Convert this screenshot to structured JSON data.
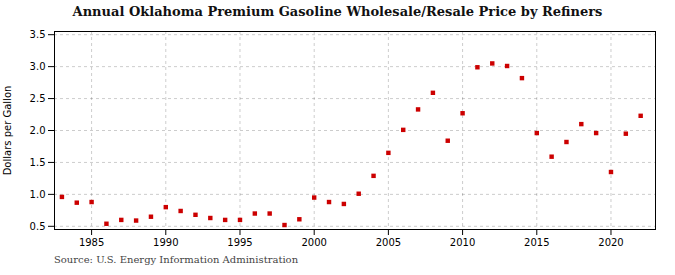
{
  "chart_data": {
    "type": "scatter",
    "title": "Annual Oklahoma Premium Gasoline Wholesale/Resale Price by Refiners",
    "ylabel": "Dollars per Gallon",
    "annotation": "Source: U.S. Energy Information Administration",
    "x": [
      1983,
      1984,
      1985,
      1986,
      1987,
      1988,
      1989,
      1990,
      1991,
      1992,
      1993,
      1994,
      1995,
      1996,
      1997,
      1998,
      1999,
      2000,
      2001,
      2002,
      2003,
      2004,
      2005,
      2006,
      2007,
      2008,
      2009,
      2010,
      2011,
      2012,
      2013,
      2014,
      2015,
      2016,
      2017,
      2018,
      2019,
      2020,
      2021,
      2022
    ],
    "values": [
      0.96,
      0.87,
      0.88,
      0.54,
      0.6,
      0.59,
      0.65,
      0.8,
      0.74,
      0.68,
      0.63,
      0.6,
      0.6,
      0.7,
      0.7,
      0.52,
      0.61,
      0.95,
      0.88,
      0.85,
      1.01,
      1.29,
      1.65,
      2.01,
      2.33,
      2.59,
      1.84,
      2.27,
      2.99,
      3.05,
      3.01,
      2.82,
      1.96,
      1.59,
      1.82,
      2.1,
      1.96,
      1.35,
      1.95,
      2.23
    ],
    "color": "#cc0000",
    "marker": "square",
    "xlim": [
      1982.5,
      2023
    ],
    "ylim": [
      0.45,
      3.55
    ],
    "xticks": [
      1985,
      1990,
      1995,
      2000,
      2005,
      2010,
      2015,
      2020
    ],
    "yticks": [
      0.5,
      {
        "value": 1,
        "label": "1.0"
      },
      1.5,
      {
        "value": 2,
        "label": "2.0"
      },
      2.5,
      {
        "value": 3,
        "label": "3.0"
      },
      3.5
    ],
    "grid": true
  }
}
